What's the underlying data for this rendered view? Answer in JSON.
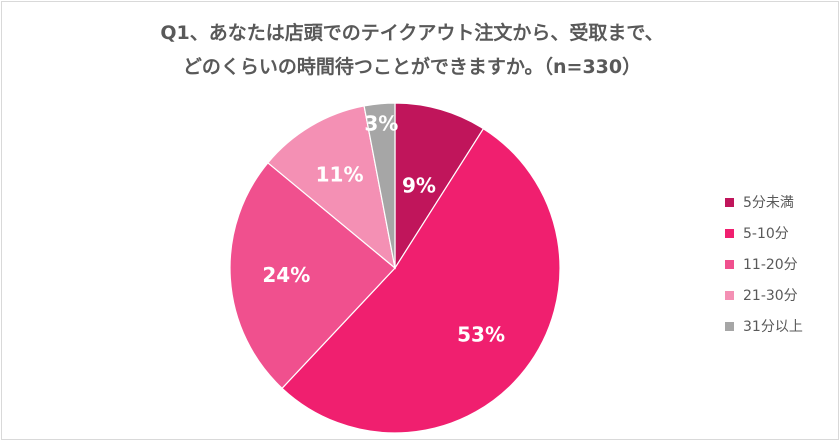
{
  "chart_data": {
    "type": "pie",
    "title_lines": [
      "Q1、あなたは店頭でのテイクアウト注文から、受取まで、",
      "どのくらいの時間待つことができますか。（n=330）"
    ],
    "categories": [
      "5分未満",
      "5-10分",
      "11-20分",
      "21-30分",
      "31分以上"
    ],
    "values": [
      9,
      53,
      24,
      11,
      3
    ],
    "value_labels": [
      "9%",
      "53%",
      "24%",
      "11%",
      "3%"
    ],
    "colors": [
      "#c0155b",
      "#f01f6f",
      "#f0508e",
      "#f490b4",
      "#a6a6a6"
    ],
    "start_angle_deg": 0,
    "direction": "clockwise",
    "legend_position": "right"
  }
}
